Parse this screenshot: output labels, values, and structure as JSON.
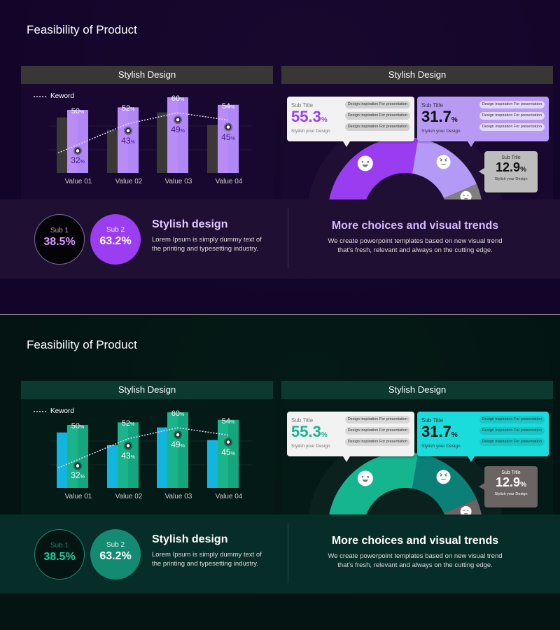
{
  "slides": [
    {
      "theme": "purple",
      "colors": {
        "bg": "#13052a",
        "band": "#1f0f33",
        "phead": "#3a3636",
        "panel": "#18082f",
        "back_bar": "#3d3838",
        "front_bar": "#b98cf5",
        "front_bar2": "#a984f7",
        "inner_label": "#3b1780",
        "seg1": "#9a3cf0",
        "seg2": "#b49af7",
        "seg3": "#7f7f7f",
        "box1": "#f2f2f2",
        "box2": "#b89af5",
        "box3": "#bdbdbd",
        "pill1": "#d0d0d0",
        "pill2": "#e2d8fb",
        "accent": "#9b3ef2",
        "circle1_bg": "#050308",
        "circle1_border": "#7a6a90",
        "circle1_value": "#d49cff",
        "circle2_bg": "#9b3ef2",
        "right_title": "#d9b8ff",
        "big2": "#111111",
        "big3": "#111111"
      },
      "title": "Feasibility of Product",
      "left_panel_title": "Stylish Design",
      "right_panel_title": "Stylish Design",
      "bottom": {
        "sub1_label": "Sub 1",
        "sub1_value": "38.5%",
        "sub2_label": "Sub 2",
        "sub2_value": "63.2%",
        "heading": "Stylish design",
        "text_line1": "Lorem Ipsum is simply dummy text of",
        "text_line2": "the printing and typesetting industry.",
        "right_heading": "More choices and visual trends",
        "right_line1": "We create powerpoint templates based on new visual trend",
        "right_line2": "that's fresh, relevant and always on the cutting edge."
      }
    },
    {
      "theme": "green",
      "colors": {
        "bg": "#031412",
        "band": "#062d27",
        "phead": "#0c3a31",
        "panel": "#041a16",
        "back_bar": "#12b5e0",
        "front_bar": "#1ab38a",
        "front_bar2": "#0f9c78",
        "inner_label": "#ffffff",
        "seg1": "#15b58f",
        "seg2": "#0b8078",
        "seg3": "#6b6464",
        "box1": "#f2f2f2",
        "box2": "#1adcdc",
        "box3": "#6b6464",
        "pill1": "#d8d8d8",
        "pill2": "#17c7c7",
        "accent": "#15b58f",
        "circle1_bg": "#031412",
        "circle1_border": "#1a8a70",
        "circle1_value": "#1fcf9f",
        "circle2_bg": "#138a72",
        "right_title": "#ffffff",
        "big2": "#111111",
        "big3": "#ffffff"
      },
      "title": "Feasibility of Product",
      "left_panel_title": "Stylish Design",
      "right_panel_title": "Stylish Design",
      "bottom": {
        "sub1_label": "Sub 1",
        "sub1_value": "38.5%",
        "sub2_label": "Sub 2",
        "sub2_value": "63.2%",
        "heading": "Stylish design",
        "text_line1": "Lorem Ipsum is simply dummy text of",
        "text_line2": "the printing and typesetting industry.",
        "right_heading": "More choices and visual trends",
        "right_line1": "We create powerpoint templates based on new visual trend",
        "right_line2": "that's fresh, relevant and always on the cutting edge."
      }
    }
  ],
  "chart_data": {
    "type": "bar",
    "legend": "Keword",
    "legend_placement": "top-left",
    "categories": [
      "Value 01",
      "Value 02",
      "Value 03",
      "Value 04"
    ],
    "series": [
      {
        "role": "back",
        "values": [
          44,
          34,
          48,
          38
        ]
      },
      {
        "role": "front",
        "values": [
          50,
          52,
          60,
          54
        ],
        "labels": [
          "50",
          "52",
          "60",
          "54"
        ]
      },
      {
        "name": "Keword",
        "role": "line",
        "values": [
          32,
          43,
          49,
          45
        ],
        "labels": [
          "32",
          "43",
          "49",
          "45"
        ]
      }
    ],
    "unit": "%",
    "ylim": [
      0,
      60
    ]
  },
  "donut": {
    "segments": [
      {
        "value": 55.3,
        "icon": "happy-face-icon"
      },
      {
        "value": 31.7,
        "icon": "angry-face-icon"
      },
      {
        "value": 12.9,
        "icon": "neutral-face-icon"
      }
    ],
    "callouts": [
      {
        "sub_title": "Sub Title",
        "value": "55.3",
        "unit": "%",
        "caption": "Stylish your Design",
        "pills": [
          "Design inspiration For presentation",
          "Design inspiration For presentation",
          "Design inspiration For presentation"
        ]
      },
      {
        "sub_title": "Sub Title",
        "value": "31.7",
        "unit": "%",
        "caption": "Stylish your Design",
        "pills": [
          "Design inspiration For presentation",
          "Design inspiration For presentation",
          "Design inspiration For presentation"
        ]
      },
      {
        "sub_title": "Sub Title",
        "value": "12.9",
        "unit": "%",
        "caption": "Stylish your Design"
      }
    ]
  }
}
